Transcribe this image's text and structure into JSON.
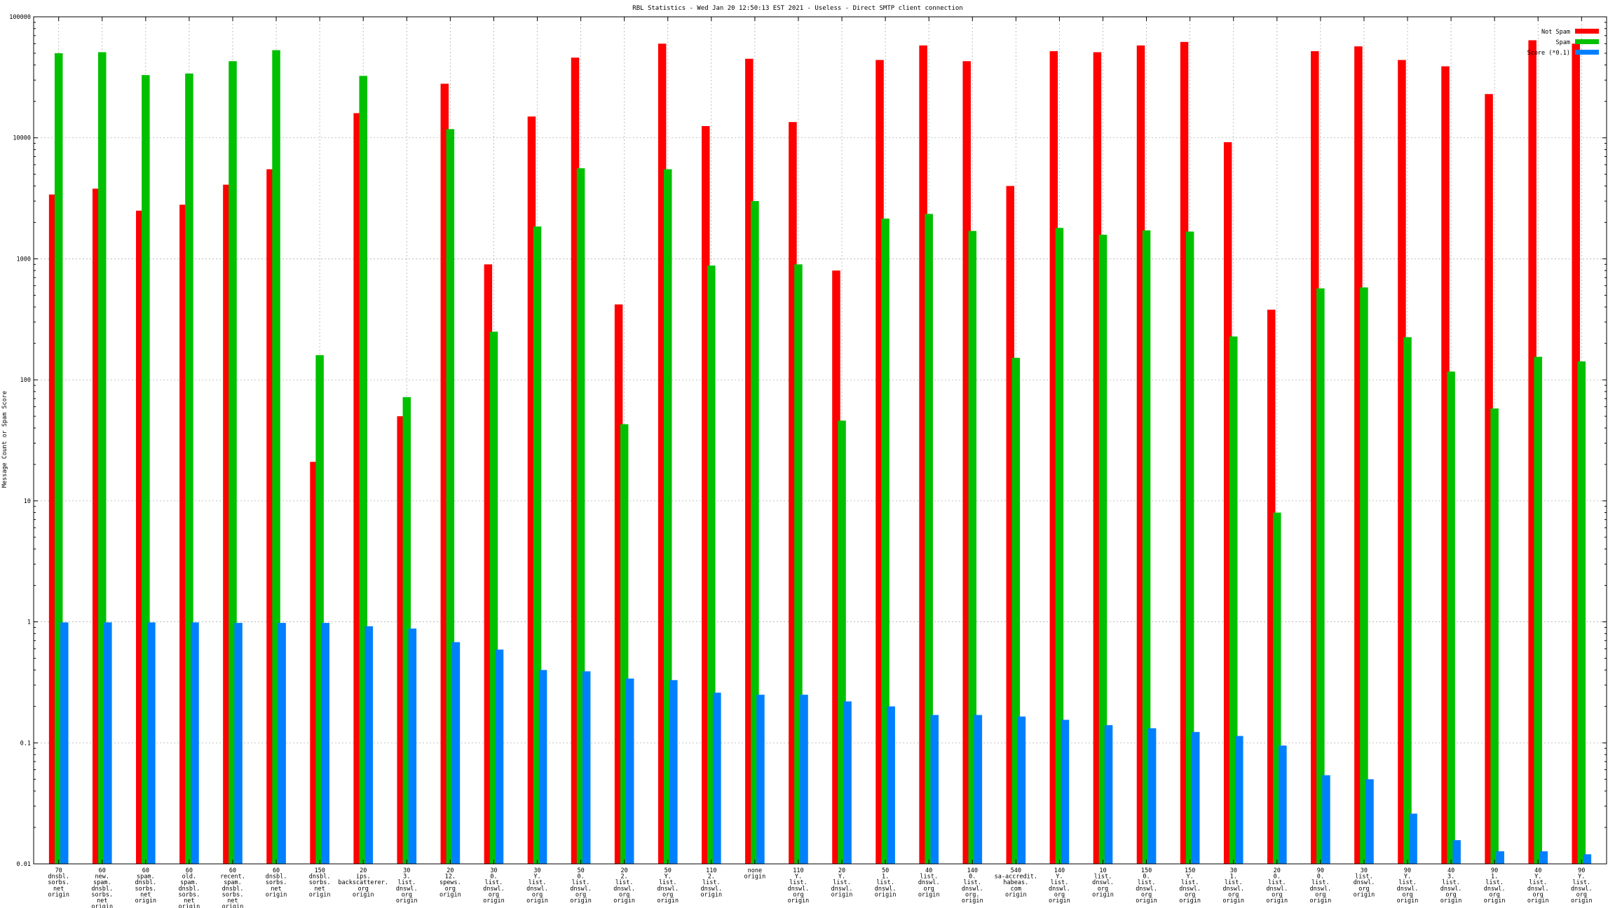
{
  "chart_data": {
    "type": "bar",
    "title": "RBL Statistics - Wed Jan 20 12:50:13 EST 2021 - Useless - Direct SMTP client connection",
    "ylabel": "Message Count or Spam Score",
    "yscale": "log",
    "ylim": [
      0.01,
      100000
    ],
    "yticks": [
      "0.01",
      "0.1",
      "1",
      "10",
      "100",
      "1000",
      "10000",
      "100000"
    ],
    "grid": true,
    "legend_position": "top-right",
    "categories": [
      [
        "70",
        "dnsbl.",
        "sorbs.",
        "net",
        "origin"
      ],
      [
        "60",
        "new.",
        "spam.",
        "dnsbl.",
        "sorbs.",
        "net",
        "origin"
      ],
      [
        "60",
        "spam.",
        "dnsbl.",
        "sorbs.",
        "net",
        "origin"
      ],
      [
        "60",
        "old.",
        "spam.",
        "dnsbl.",
        "sorbs.",
        "net",
        "origin"
      ],
      [
        "60",
        "recent.",
        "spam.",
        "dnsbl.",
        "sorbs.",
        "net",
        "origin"
      ],
      [
        "60",
        "dnsbl.",
        "sorbs.",
        "net",
        "origin"
      ],
      [
        "150",
        "dnsbl.",
        "sorbs.",
        "net",
        "origin"
      ],
      [
        "20",
        "ips.",
        "backscatterer.",
        "org",
        "origin"
      ],
      [
        "30",
        "3.",
        "list.",
        "dnswl.",
        "org",
        "origin"
      ],
      [
        "20",
        "12.",
        "spews.",
        "org",
        "origin"
      ],
      [
        "30",
        "0.",
        "list.",
        "dnswl.",
        "org",
        "origin"
      ],
      [
        "30",
        "Y.",
        "list.",
        "dnswl.",
        "org",
        "origin"
      ],
      [
        "50",
        "0.",
        "list.",
        "dnswl.",
        "org",
        "origin"
      ],
      [
        "20",
        "2.",
        "list.",
        "dnswl.",
        "org",
        "origin"
      ],
      [
        "50",
        "Y.",
        "list.",
        "dnswl.",
        "org",
        "origin"
      ],
      [
        "110",
        "2.",
        "list.",
        "dnswl.",
        "origin"
      ],
      [
        "none",
        "origin"
      ],
      [
        "110",
        "Y.",
        "list.",
        "dnswl.",
        "org",
        "origin"
      ],
      [
        "20",
        "Y.",
        "list.",
        "dnswl.",
        "origin"
      ],
      [
        "50",
        "1.",
        "list.",
        "dnswl.",
        "origin"
      ],
      [
        "40",
        "list.",
        "dnswl.",
        "org",
        "origin"
      ],
      [
        "140",
        "0.",
        "list.",
        "dnswl.",
        "org.",
        "origin"
      ],
      [
        "540",
        "sa-accredit.",
        "habeas.",
        "com",
        "origin"
      ],
      [
        "140",
        "Y.",
        "list.",
        "dnswl.",
        "org",
        "origin"
      ],
      [
        "10",
        "list.",
        "dnswl.",
        "org",
        "origin"
      ],
      [
        "150",
        "0.",
        "list.",
        "dnswl.",
        "org",
        "origin"
      ],
      [
        "150",
        "Y.",
        "list.",
        "dnswl.",
        "org",
        "origin"
      ],
      [
        "30",
        "1.",
        "list.",
        "dnswl.",
        "org",
        "origin"
      ],
      [
        "20",
        "0.",
        "list.",
        "dnswl.",
        "org",
        "origin"
      ],
      [
        "90",
        "0.",
        "list.",
        "dnswl.",
        "org",
        "origin"
      ],
      [
        "30",
        "list.",
        "dnswl.",
        "org",
        "origin"
      ],
      [
        "90",
        "Y.",
        "list.",
        "dnswl.",
        "org",
        "origin"
      ],
      [
        "40",
        "3.",
        "list.",
        "dnswl.",
        "org",
        "origin"
      ],
      [
        "90",
        "1.",
        "list.",
        "dnswl.",
        "org",
        "origin"
      ],
      [
        "40",
        "Y.",
        "list.",
        "dnswl.",
        "org",
        "origin"
      ],
      [
        "90",
        "Y.",
        "list.",
        "dnswl.",
        "org",
        "origin"
      ]
    ],
    "series": [
      {
        "name": "Not Spam",
        "color": "#ff0000",
        "values": [
          3400,
          3800,
          2500,
          2800,
          4100,
          5500,
          21,
          16000,
          50,
          28000,
          900,
          15000,
          46000,
          420,
          60000,
          12500,
          45000,
          13500,
          800,
          44000,
          58000,
          43000,
          4000,
          52000,
          51000,
          58000,
          62000,
          9200,
          380,
          52000,
          57000,
          44000,
          39000,
          23000,
          64000,
          60000
        ]
      },
      {
        "name": "Spam",
        "color": "#00c000",
        "values": [
          50000,
          51000,
          33000,
          34000,
          43000,
          53000,
          160,
          32500,
          72,
          11800,
          250,
          1850,
          5600,
          43,
          5500,
          880,
          3000,
          900,
          46,
          2150,
          2350,
          1700,
          152,
          1800,
          1580,
          1720,
          1680,
          228,
          8,
          570,
          580,
          225,
          117,
          58,
          155,
          142
        ]
      },
      {
        "name": "Score (*0.1)",
        "color": "#0080ff",
        "values": [
          0.99,
          0.99,
          0.99,
          0.99,
          0.98,
          0.98,
          0.98,
          0.92,
          0.88,
          0.68,
          0.59,
          0.4,
          0.39,
          0.34,
          0.33,
          0.26,
          0.25,
          0.25,
          0.22,
          0.2,
          0.17,
          0.17,
          0.165,
          0.155,
          0.14,
          0.132,
          0.123,
          0.114,
          0.095,
          0.054,
          0.05,
          0.026,
          0.0157,
          0.0127,
          0.0127,
          0.012
        ]
      }
    ]
  }
}
